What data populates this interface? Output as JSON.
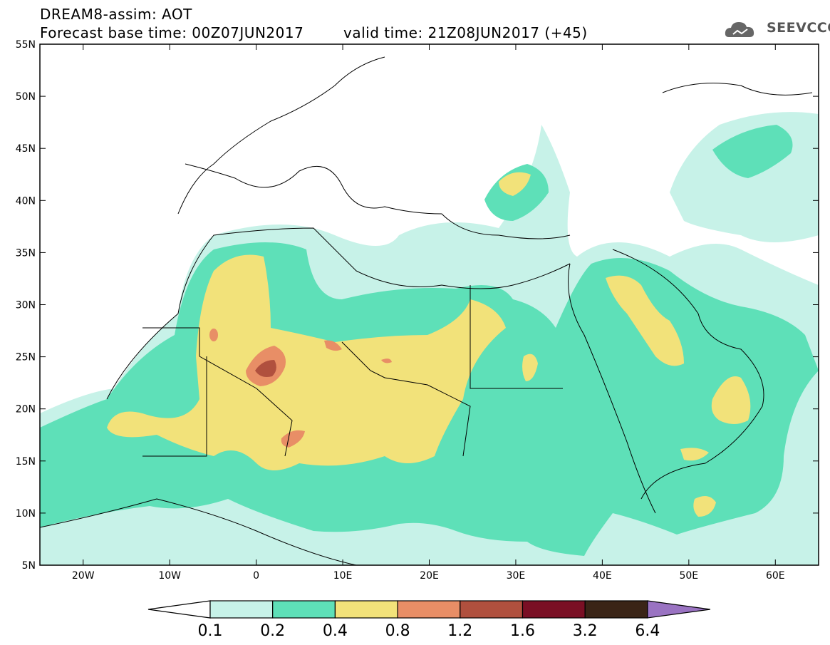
{
  "header": {
    "line1": "DREAM8-assim: AOT",
    "line2a": "Forecast base time: 00Z07JUN2017",
    "line2b": "valid time: 21Z08JUN2017 (+45)",
    "logo_text": "SEEVCCC",
    "logo_icon": "cloud-logo-icon"
  },
  "map": {
    "lon_range": [
      -25,
      65
    ],
    "lat_range": [
      5,
      55
    ],
    "lat_labels": [
      "55N",
      "50N",
      "45N",
      "40N",
      "35N",
      "30N",
      "25N",
      "20N",
      "15N",
      "10N",
      "5N"
    ],
    "lon_labels": [
      "20W",
      "10W",
      "0",
      "10E",
      "20E",
      "30E",
      "40E",
      "50E",
      "60E"
    ]
  },
  "colorbar": {
    "labels": [
      "0.1",
      "0.2",
      "0.4",
      "0.8",
      "1.2",
      "1.6",
      "3.2",
      "6.4"
    ],
    "colors": [
      "#ffffff",
      "#c7f2e8",
      "#5ee0b8",
      "#f2e27a",
      "#e88e66",
      "#b0503e",
      "#7a0f24",
      "#3a2416",
      "#9a73c2"
    ]
  }
}
